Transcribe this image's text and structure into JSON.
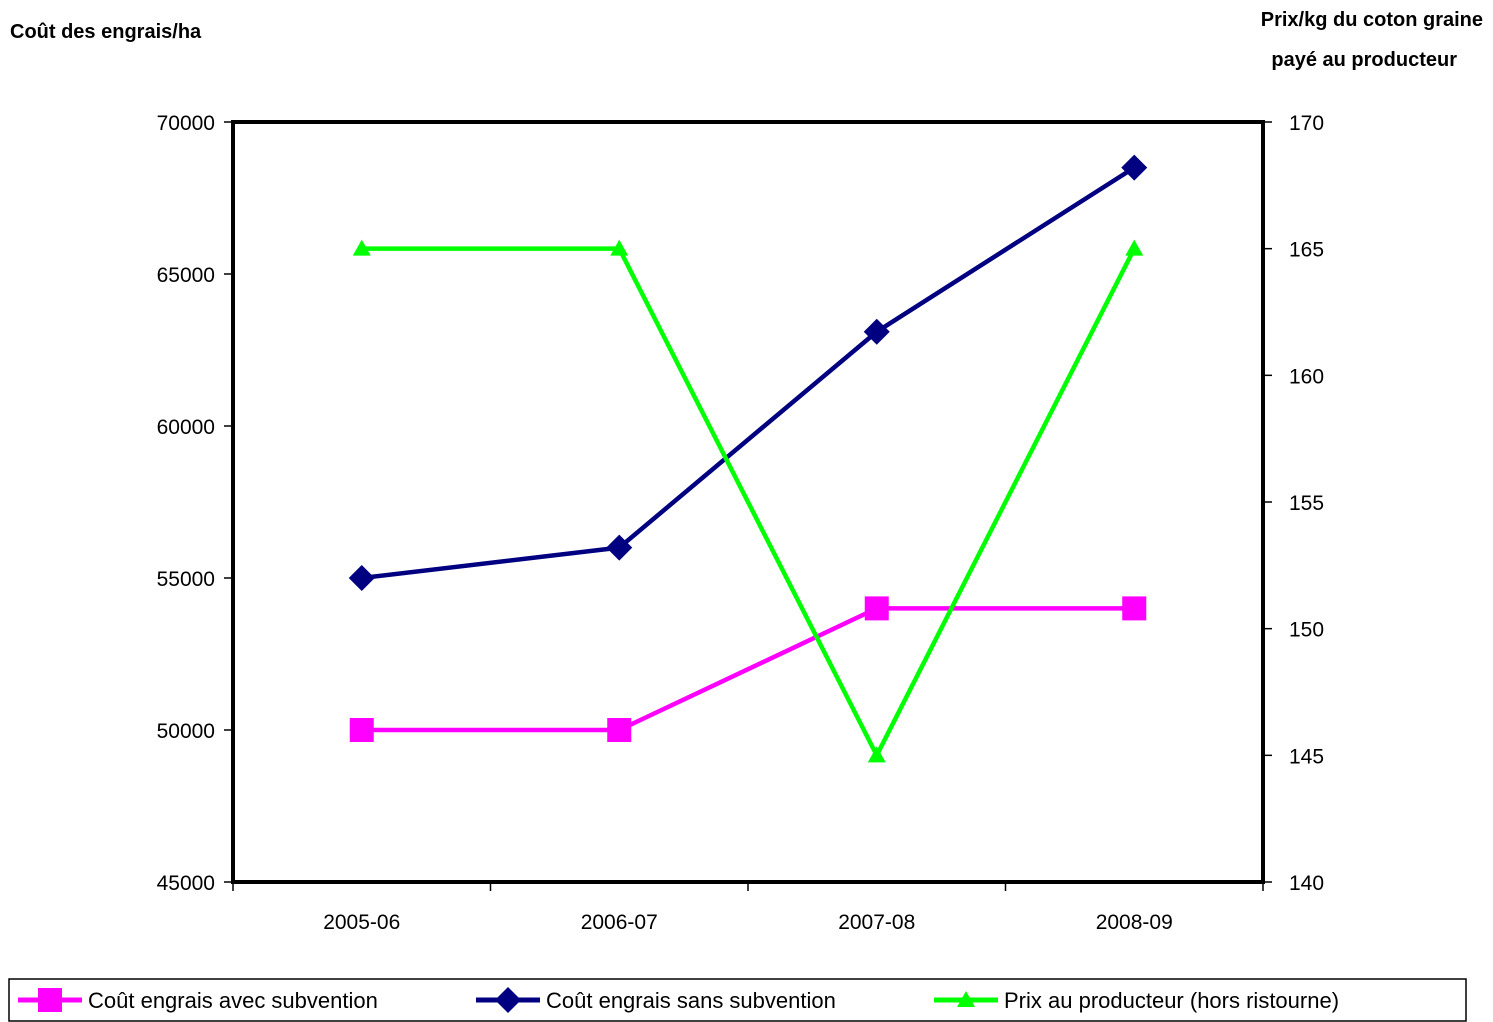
{
  "chart_data": {
    "type": "line",
    "categories": [
      "2005-06",
      "2006-07",
      "2007-08",
      "2008-09"
    ],
    "left_axis": {
      "label": "Coût des engrais/ha",
      "range": [
        45000,
        70000
      ],
      "ticks": [
        45000,
        50000,
        55000,
        60000,
        65000,
        70000
      ]
    },
    "right_axis": {
      "label_line1": "Prix/kg du coton graine",
      "label_line2": "payé au producteur",
      "range": [
        140,
        170
      ],
      "ticks": [
        140,
        145,
        150,
        155,
        160,
        165,
        170
      ]
    },
    "series": [
      {
        "name": "Coût engrais avec subvention",
        "axis": "left",
        "color": "#ff00ff",
        "marker": "square",
        "values": [
          50000,
          50000,
          54000,
          54000
        ]
      },
      {
        "name": "Coût engrais sans subvention",
        "axis": "left",
        "color": "#000080",
        "marker": "diamond",
        "values": [
          55000,
          56000,
          63100,
          68500
        ]
      },
      {
        "name": "Prix au producteur (hors ristourne)",
        "axis": "right",
        "color": "#00ff00",
        "marker": "triangle",
        "values": [
          165,
          165,
          145,
          165
        ]
      }
    ],
    "grid": false,
    "legend_position": "bottom"
  }
}
